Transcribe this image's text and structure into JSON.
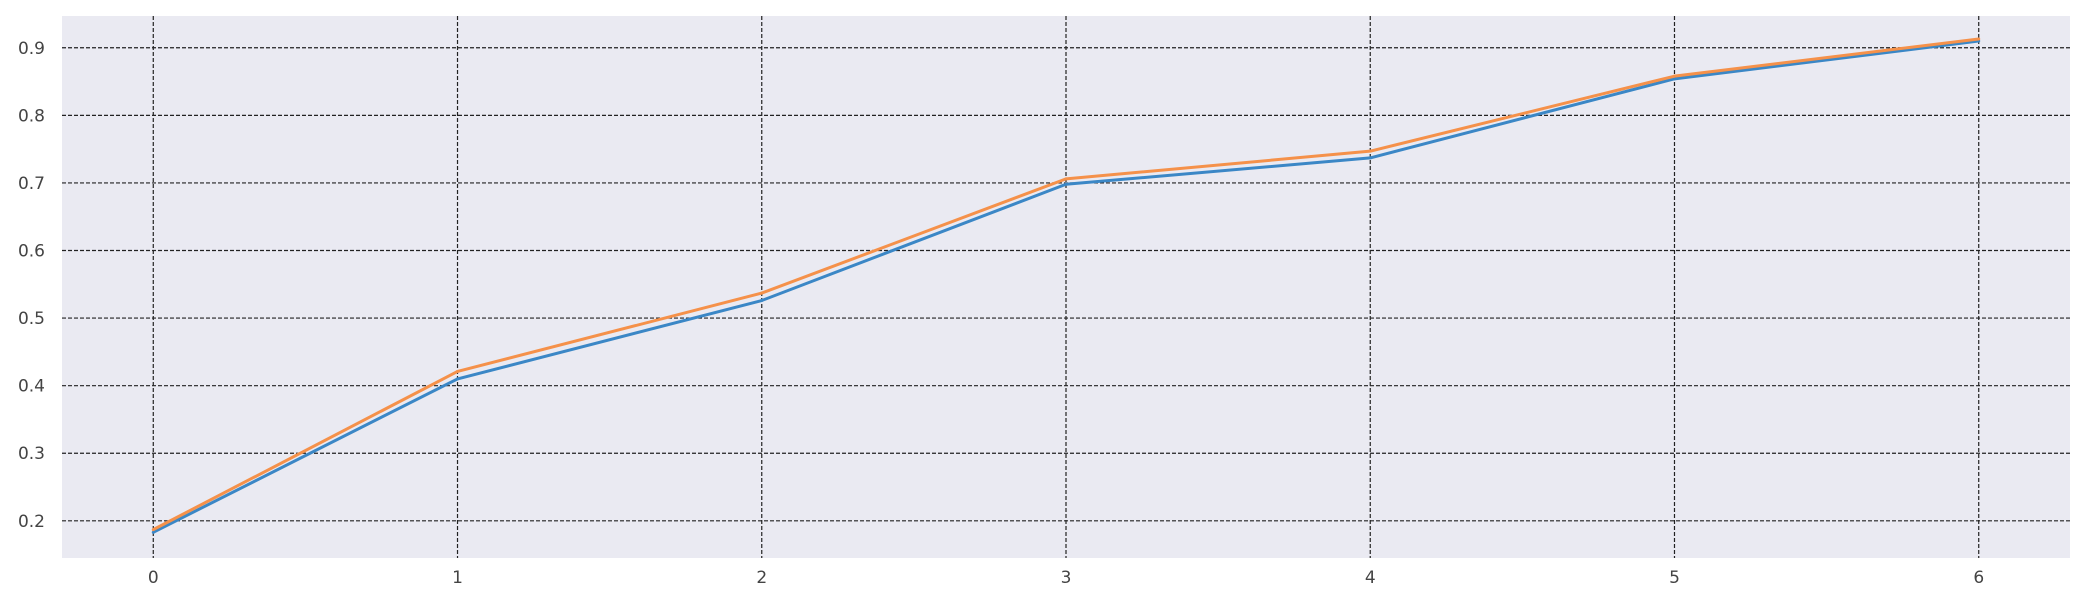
{
  "chart_data": {
    "type": "line",
    "title": "",
    "xlabel": "",
    "ylabel": "",
    "x": [
      0,
      1,
      2,
      3,
      4,
      5,
      6
    ],
    "xlim": [
      -0.3,
      6.3
    ],
    "ylim": [
      0.145,
      0.947
    ],
    "xticks": [
      0,
      1,
      2,
      3,
      4,
      5,
      6
    ],
    "yticks": [
      0.2,
      0.3,
      0.4,
      0.5,
      0.6,
      0.7,
      0.8,
      0.9
    ],
    "ytick_labels": [
      "0.2",
      "0.3",
      "0.4",
      "0.5",
      "0.6",
      "0.7",
      "0.8",
      "0.9"
    ],
    "grid": true,
    "grid_style": "dashed",
    "legend": "none",
    "background_color": "#eaeaf2",
    "grid_color": "#222222",
    "series": [
      {
        "color": "#3b87c6",
        "values": [
          0.183,
          0.41,
          0.526,
          0.698,
          0.737,
          0.854,
          0.91
        ]
      },
      {
        "color": "#f5914a",
        "values": [
          0.187,
          0.421,
          0.537,
          0.706,
          0.747,
          0.858,
          0.913
        ]
      }
    ]
  }
}
